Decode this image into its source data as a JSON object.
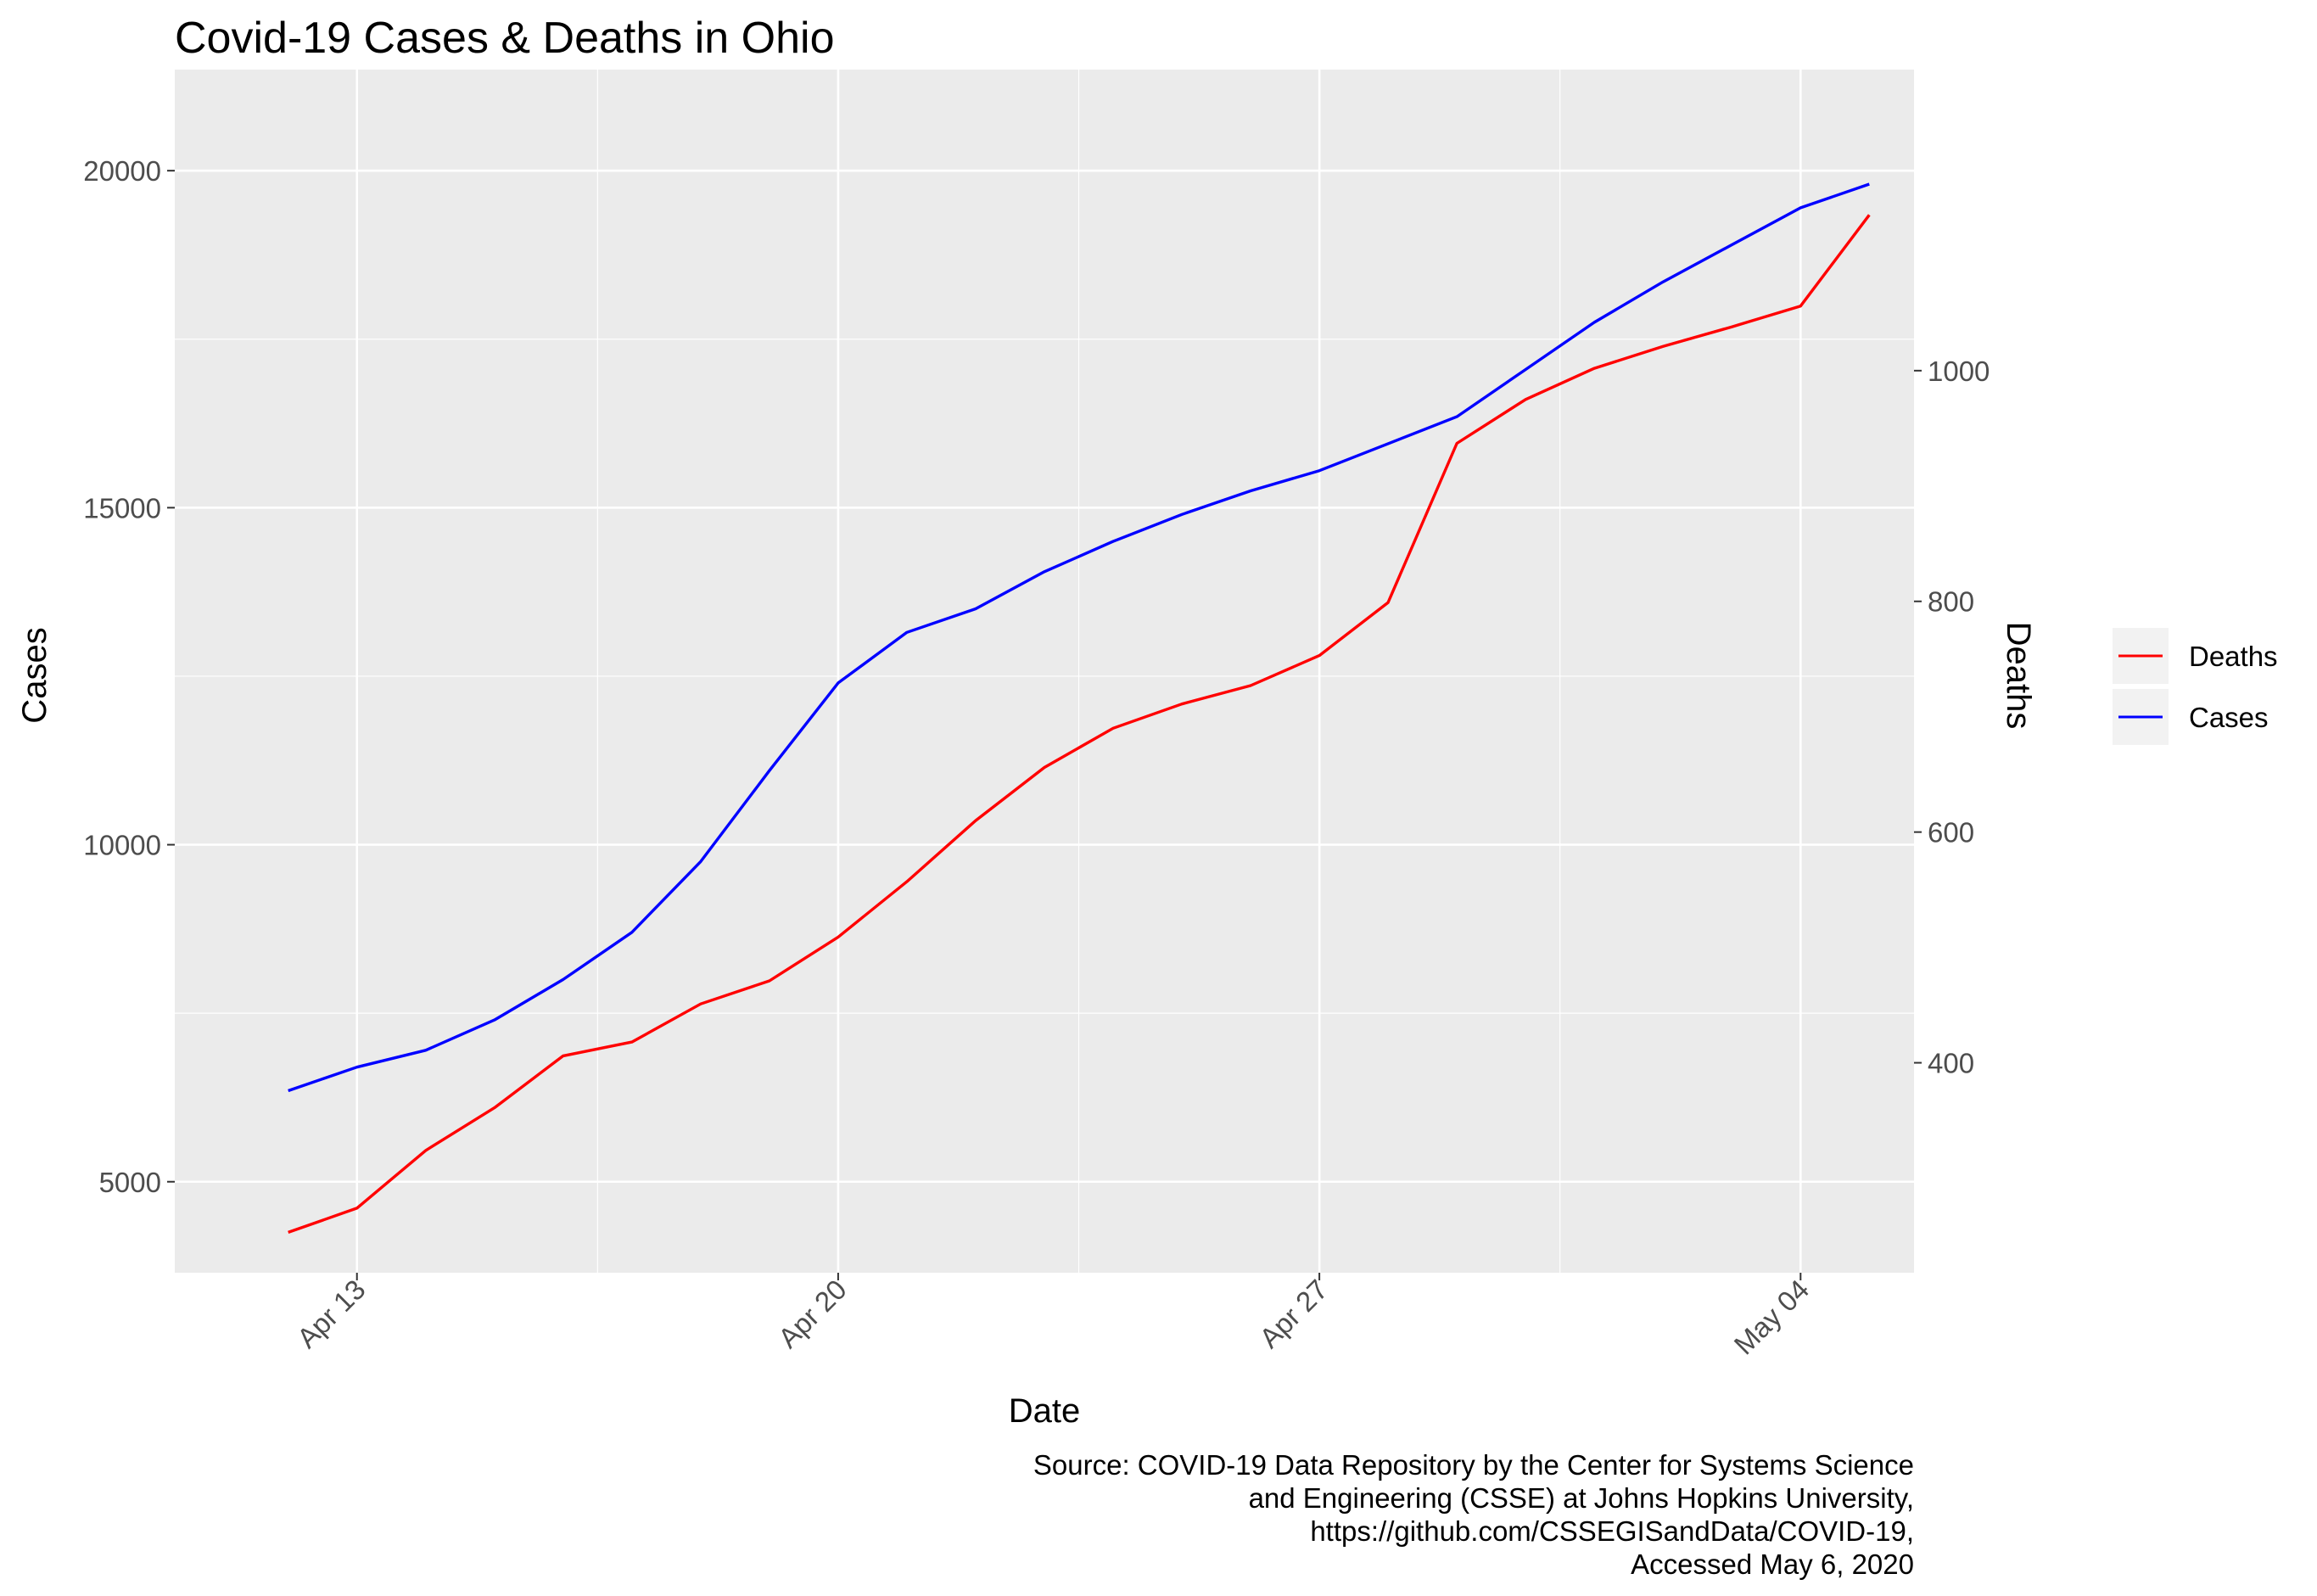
{
  "chart_data": {
    "type": "line",
    "title": "Covid-19 Cases & Deaths in Ohio",
    "xlabel": "Date",
    "ylabel_left": "Cases",
    "ylabel_right": "Deaths",
    "x_ticks": [
      "Apr 13",
      "Apr 20",
      "Apr 27",
      "May 04"
    ],
    "x": [
      "2020-04-12",
      "2020-04-13",
      "2020-04-14",
      "2020-04-15",
      "2020-04-16",
      "2020-04-17",
      "2020-04-18",
      "2020-04-19",
      "2020-04-20",
      "2020-04-21",
      "2020-04-22",
      "2020-04-23",
      "2020-04-24",
      "2020-04-25",
      "2020-04-26",
      "2020-04-27",
      "2020-04-28",
      "2020-04-29",
      "2020-04-30",
      "2020-05-01",
      "2020-05-02",
      "2020-05-03",
      "2020-05-04",
      "2020-05-05"
    ],
    "y_left_ticks": [
      5000,
      10000,
      15000,
      20000
    ],
    "y_left_lim": [
      3650,
      21500
    ],
    "y_right_ticks": [
      400,
      600,
      800,
      1000
    ],
    "y_right_lim": [
      218,
      1261
    ],
    "series": [
      {
        "name": "Deaths",
        "axis": "right",
        "color": "#ff0000",
        "values": [
          253,
          274,
          324,
          361,
          406,
          418,
          451,
          471,
          509,
          557,
          610,
          656,
          690,
          711,
          727,
          753,
          799,
          937,
          975,
          1002,
          1021,
          1038,
          1056,
          1135
        ]
      },
      {
        "name": "Cases",
        "axis": "left",
        "color": "#0000ff",
        "values": [
          6350,
          6700,
          6950,
          7400,
          8000,
          8700,
          9750,
          11100,
          12400,
          13150,
          13500,
          14050,
          14500,
          14900,
          15250,
          15550,
          15950,
          16350,
          17050,
          17750,
          18350,
          18900,
          19450,
          19800
        ]
      }
    ],
    "legend_position": "right",
    "grid": true,
    "panel_background": "#ebebeb",
    "grid_color": "#ffffff"
  },
  "caption_lines": [
    "Source: COVID-19 Data Repository by the Center for Systems Science",
    "and Engineering (CSSE) at Johns Hopkins University,",
    "https://github.com/CSSEGISandData/COVID-19,",
    "Accessed May 6, 2020"
  ]
}
